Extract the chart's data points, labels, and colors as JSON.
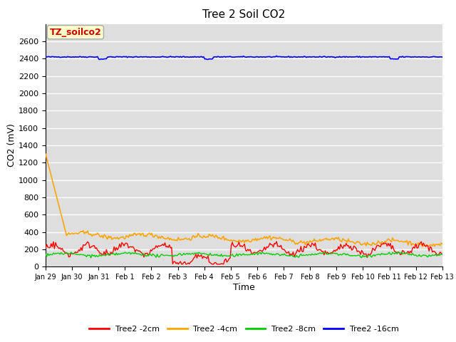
{
  "title": "Tree 2 Soil CO2",
  "xlabel": "Time",
  "ylabel": "CO2 (mV)",
  "annotation_text": "TZ_soilco2",
  "annotation_bg": "#ffffcc",
  "annotation_edge": "#aaaaaa",
  "annotation_text_color": "#cc0000",
  "ylim": [
    0,
    2800
  ],
  "yticks": [
    0,
    200,
    400,
    600,
    800,
    1000,
    1200,
    1400,
    1600,
    1800,
    2000,
    2200,
    2400,
    2600
  ],
  "xtick_labels": [
    "Jan 29",
    "Jan 30",
    "Jan 31",
    "Feb 1",
    "Feb 2",
    "Feb 3",
    "Feb 4",
    "Feb 5",
    "Feb 6",
    "Feb 7",
    "Feb 8",
    "Feb 9",
    "Feb 10",
    "Feb 11",
    "Feb 12",
    "Feb 13"
  ],
  "bg_color": "#dedede",
  "legend_entries": [
    "Tree2 -2cm",
    "Tree2 -4cm",
    "Tree2 -8cm",
    "Tree2 -16cm"
  ],
  "legend_colors": [
    "#ff0000",
    "#ffa500",
    "#00cc00",
    "#0000ff"
  ],
  "line_colors": [
    "#ff0000",
    "#ffa500",
    "#00cc00",
    "#0000ff"
  ],
  "figsize": [
    6.4,
    4.8
  ],
  "dpi": 100
}
